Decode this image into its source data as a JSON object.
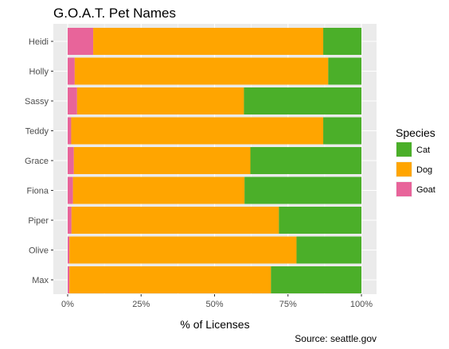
{
  "chart_data": {
    "type": "bar",
    "orientation": "horizontal",
    "stacked": true,
    "title": "G.O.A.T. Pet Names",
    "xlabel": "% of Licenses",
    "ylabel": "",
    "caption": "Source: seattle.gov",
    "categories": [
      "Heidi",
      "Holly",
      "Sassy",
      "Teddy",
      "Grace",
      "Fiona",
      "Piper",
      "Olive",
      "Max"
    ],
    "xlim": [
      0,
      100
    ],
    "xticks": [
      0,
      25,
      50,
      75,
      100
    ],
    "xtick_labels": [
      "0%",
      "25%",
      "50%",
      "75%",
      "100%"
    ],
    "grid": true,
    "legend": {
      "title": "Species",
      "position": "right"
    },
    "series": [
      {
        "name": "Goat",
        "color": "#E8649A",
        "values": [
          8.7,
          2.4,
          3.2,
          1.2,
          2.1,
          1.8,
          1.3,
          0.6,
          0.6
        ]
      },
      {
        "name": "Dog",
        "color": "#FFA500",
        "values": [
          78.3,
          86.3,
          56.8,
          85.8,
          60.1,
          58.4,
          70.6,
          77.3,
          68.6
        ]
      },
      {
        "name": "Cat",
        "color": "#4BAF29",
        "values": [
          13.0,
          11.3,
          40.0,
          13.0,
          37.8,
          39.8,
          28.1,
          22.1,
          30.8
        ]
      }
    ],
    "legend_order": [
      "Cat",
      "Dog",
      "Goat"
    ]
  }
}
